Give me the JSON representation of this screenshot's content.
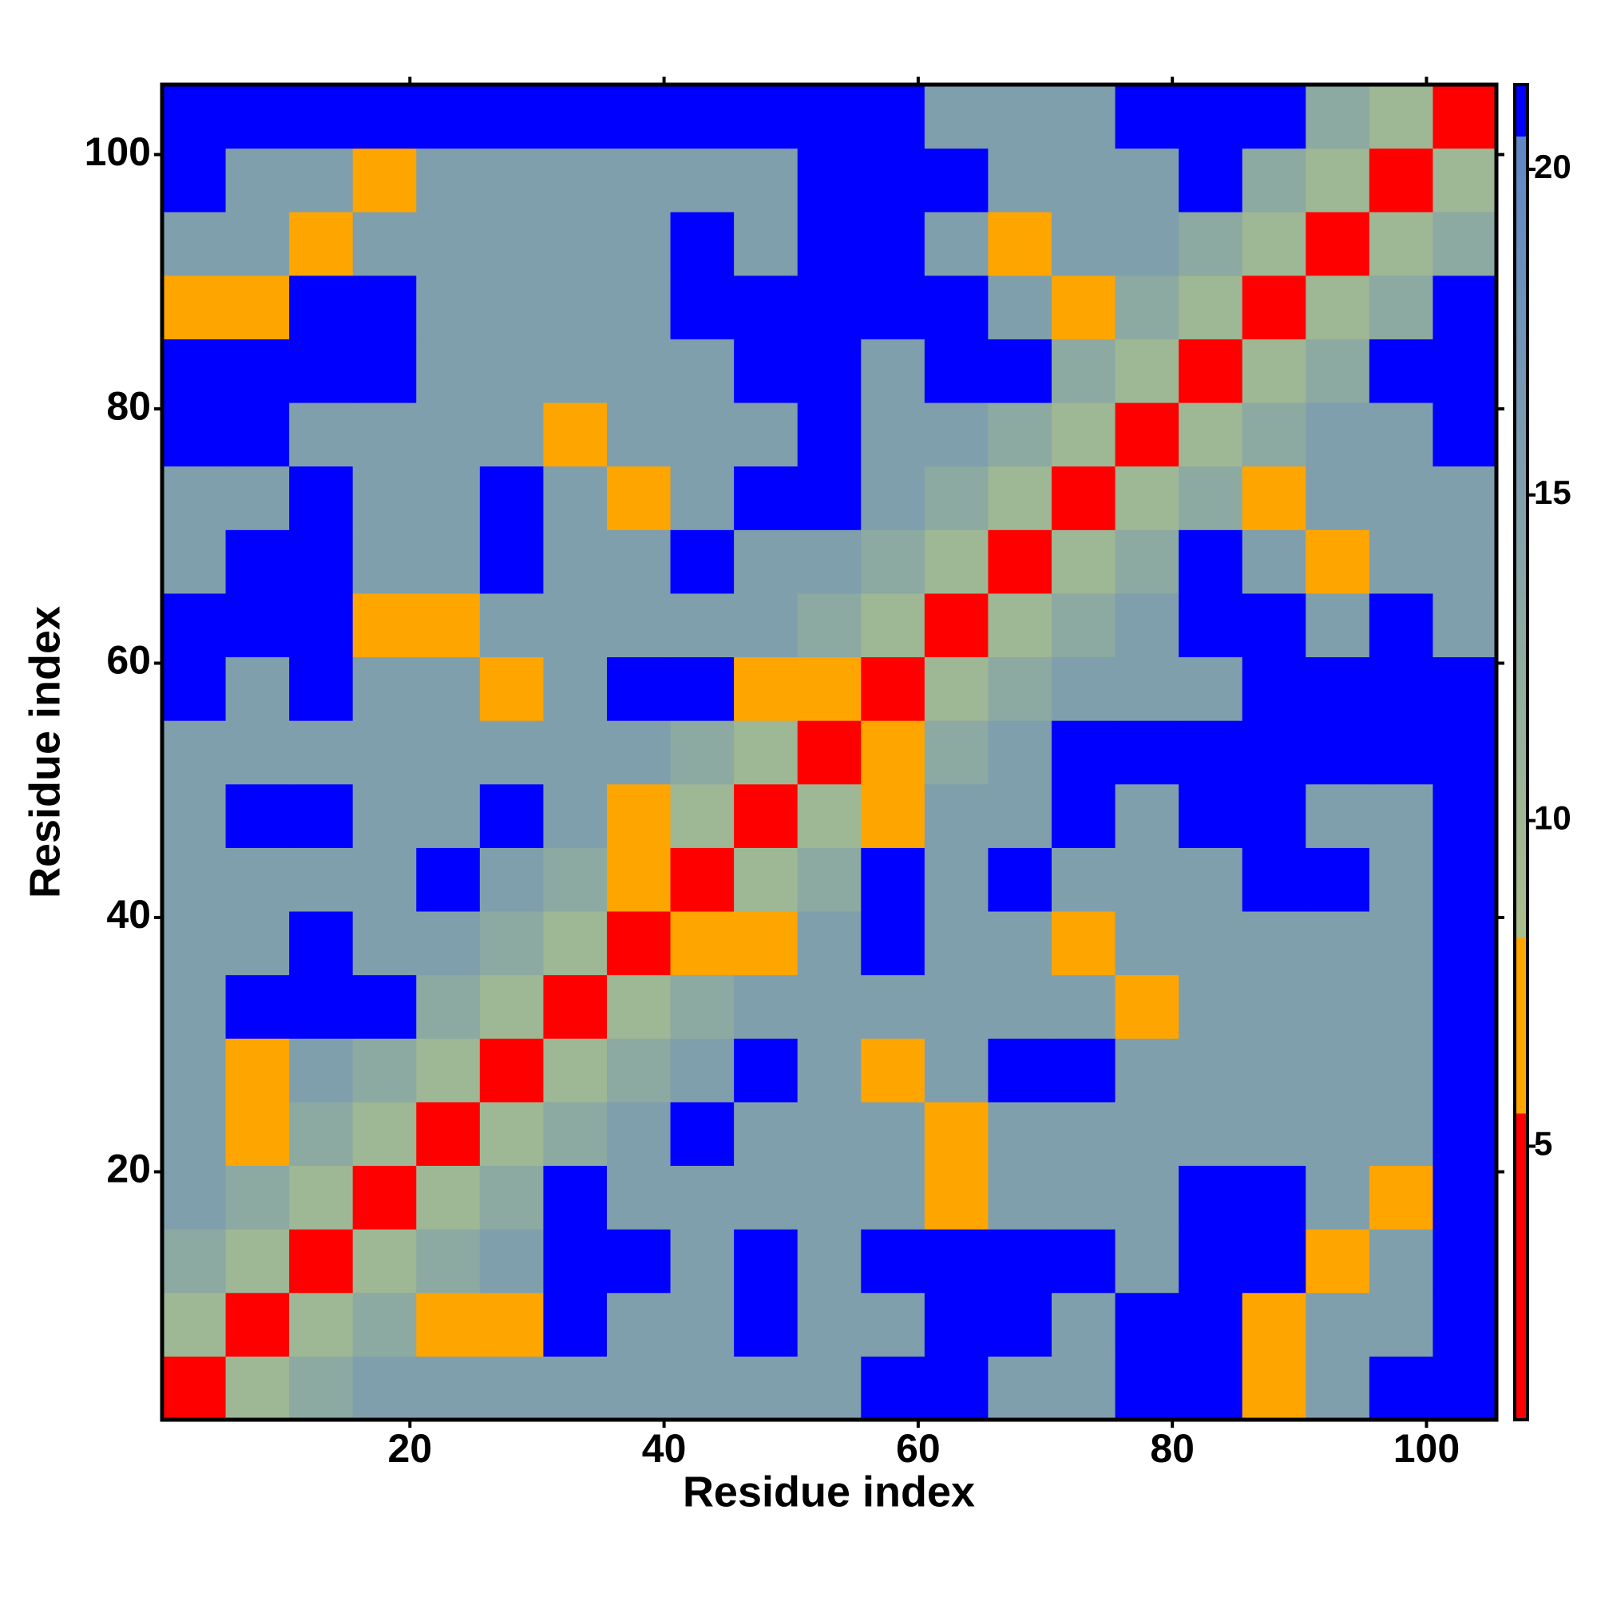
{
  "chart_data": {
    "type": "heatmap",
    "xlabel": "Residue index",
    "ylabel": "Residue index",
    "x": [
      3,
      8,
      13,
      18,
      23,
      28,
      33,
      38,
      43,
      48,
      53,
      58,
      63,
      68,
      73,
      78,
      83,
      88,
      93,
      98,
      103
    ],
    "y": [
      3,
      8,
      13,
      18,
      23,
      28,
      33,
      38,
      43,
      48,
      53,
      58,
      63,
      68,
      73,
      78,
      83,
      88,
      93,
      98,
      103
    ],
    "z": [
      [
        2,
        10,
        13,
        15,
        15,
        15,
        15,
        15,
        15,
        15,
        15,
        21,
        21,
        15,
        15,
        21,
        21,
        7,
        15,
        21,
        21
      ],
      [
        10,
        2,
        10,
        13,
        7,
        7,
        21,
        15,
        15,
        21,
        15,
        15,
        21,
        21,
        15,
        21,
        21,
        7,
        15,
        15,
        21
      ],
      [
        13,
        10,
        2,
        10,
        13,
        15,
        21,
        21,
        15,
        21,
        15,
        21,
        21,
        21,
        21,
        15,
        21,
        21,
        7,
        15,
        21
      ],
      [
        15,
        13,
        10,
        2,
        10,
        13,
        21,
        15,
        15,
        15,
        15,
        15,
        7,
        15,
        15,
        15,
        21,
        21,
        15,
        7,
        21
      ],
      [
        15,
        7,
        13,
        10,
        2,
        10,
        13,
        15,
        21,
        15,
        15,
        15,
        7,
        15,
        15,
        15,
        15,
        15,
        15,
        15,
        21
      ],
      [
        15,
        7,
        15,
        13,
        10,
        2,
        10,
        13,
        15,
        21,
        15,
        7,
        15,
        21,
        21,
        15,
        15,
        15,
        15,
        15,
        21
      ],
      [
        15,
        21,
        21,
        21,
        13,
        10,
        2,
        10,
        13,
        15,
        15,
        15,
        15,
        15,
        15,
        7,
        15,
        15,
        15,
        15,
        21
      ],
      [
        15,
        15,
        21,
        15,
        15,
        13,
        10,
        2,
        7,
        7,
        15,
        21,
        15,
        15,
        7,
        15,
        15,
        15,
        15,
        15,
        21
      ],
      [
        15,
        15,
        15,
        15,
        21,
        15,
        13,
        7,
        2,
        10,
        13,
        21,
        15,
        21,
        15,
        15,
        15,
        21,
        21,
        15,
        21
      ],
      [
        15,
        21,
        21,
        15,
        15,
        21,
        15,
        7,
        10,
        2,
        10,
        7,
        15,
        15,
        21,
        15,
        21,
        21,
        15,
        15,
        21
      ],
      [
        15,
        15,
        15,
        15,
        15,
        15,
        15,
        15,
        13,
        10,
        2,
        7,
        13,
        15,
        21,
        21,
        21,
        21,
        21,
        21,
        21
      ],
      [
        21,
        15,
        21,
        15,
        15,
        7,
        15,
        21,
        21,
        7,
        7,
        2,
        10,
        13,
        15,
        15,
        15,
        21,
        21,
        21,
        21
      ],
      [
        21,
        21,
        21,
        7,
        7,
        15,
        15,
        15,
        15,
        15,
        13,
        10,
        2,
        10,
        13,
        15,
        21,
        21,
        15,
        21,
        15
      ],
      [
        15,
        21,
        21,
        15,
        15,
        21,
        15,
        15,
        21,
        15,
        15,
        13,
        10,
        2,
        10,
        13,
        21,
        15,
        7,
        15,
        15
      ],
      [
        15,
        15,
        21,
        15,
        15,
        21,
        15,
        7,
        15,
        21,
        21,
        15,
        13,
        10,
        2,
        10,
        13,
        7,
        15,
        15,
        15
      ],
      [
        21,
        21,
        15,
        15,
        15,
        15,
        7,
        15,
        15,
        15,
        21,
        15,
        15,
        13,
        10,
        2,
        10,
        13,
        15,
        15,
        21
      ],
      [
        21,
        21,
        21,
        21,
        15,
        15,
        15,
        15,
        15,
        21,
        21,
        15,
        21,
        21,
        13,
        10,
        2,
        10,
        13,
        21,
        21
      ],
      [
        7,
        7,
        21,
        21,
        15,
        15,
        15,
        15,
        21,
        21,
        21,
        21,
        21,
        15,
        7,
        13,
        10,
        2,
        10,
        13,
        21
      ],
      [
        15,
        15,
        7,
        15,
        15,
        15,
        15,
        15,
        21,
        15,
        21,
        21,
        15,
        7,
        15,
        15,
        13,
        10,
        2,
        10,
        13
      ],
      [
        21,
        15,
        15,
        7,
        15,
        15,
        15,
        15,
        15,
        15,
        21,
        21,
        21,
        15,
        15,
        15,
        21,
        13,
        10,
        2,
        10
      ],
      [
        21,
        21,
        21,
        21,
        21,
        21,
        21,
        21,
        21,
        21,
        21,
        21,
        15,
        15,
        15,
        21,
        21,
        21,
        13,
        10,
        2
      ]
    ],
    "xlim": [
      0.5,
      105.5
    ],
    "ylim": [
      0.5,
      105.5
    ],
    "xticks": [
      20,
      40,
      60,
      80,
      100
    ],
    "yticks": [
      20,
      40,
      60,
      80,
      100
    ],
    "zlim": [
      0.8,
      21.3
    ],
    "zticks": [
      5,
      10,
      15,
      20
    ],
    "colorscale": [
      [
        0.8,
        "#ff0000"
      ],
      [
        5.5,
        "#ff0000"
      ],
      [
        5.5,
        "#ffa500"
      ],
      [
        8.2,
        "#ffa500"
      ],
      [
        8.2,
        "#a9bf8b"
      ],
      [
        20.5,
        "#5f86c6"
      ],
      [
        20.5,
        "#0000ff"
      ],
      [
        21.3,
        "#0000ff"
      ]
    ]
  }
}
